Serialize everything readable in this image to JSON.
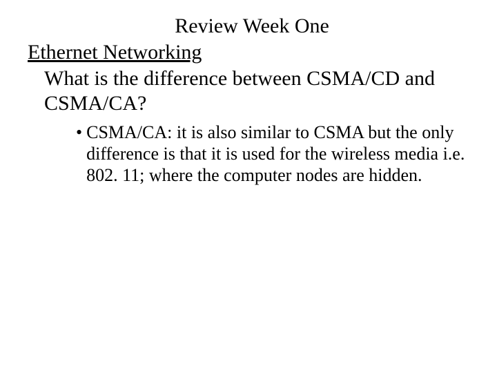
{
  "slide": {
    "title": "Review Week One",
    "subtitle": "Ethernet Networking",
    "question": "What is the difference between CSMA/CD and CSMA/CA?",
    "bullet_marker": "•",
    "bullet_text": "CSMA/CA: it is also similar to CSMA but the only difference is that it is used for the wireless media i.e. 802. 11; where the computer nodes are hidden.",
    "colors": {
      "background": "#ffffff",
      "text": "#000000"
    },
    "font": {
      "family": "Times New Roman",
      "title_size_pt": 30,
      "subtitle_size_pt": 30,
      "question_size_pt": 30,
      "bullet_size_pt": 26
    }
  }
}
